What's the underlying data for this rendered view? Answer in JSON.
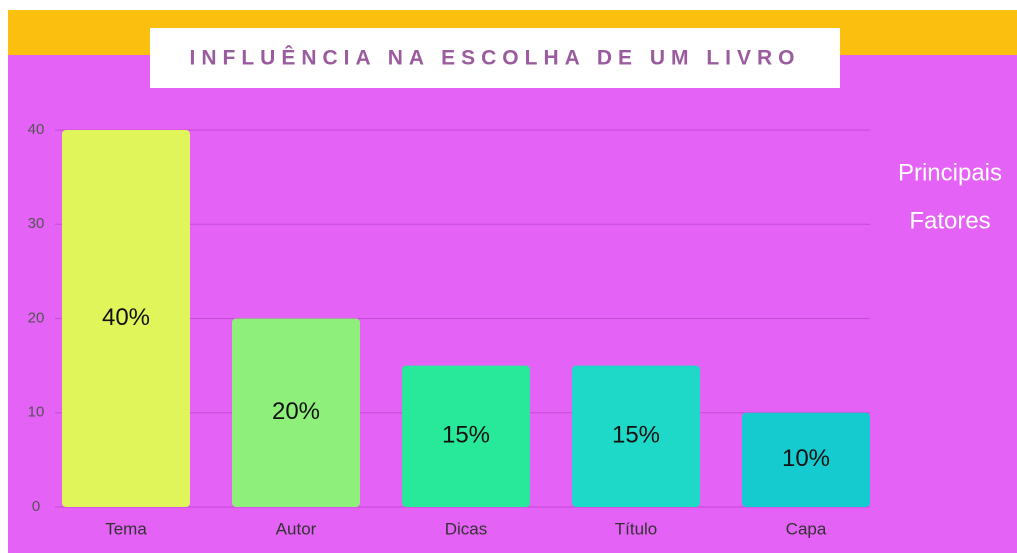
{
  "chart_data": {
    "type": "bar",
    "title": "INFLUÊNCIA NA ESCOLHA DE UM LIVRO",
    "annotation": [
      "Principais",
      "Fatores"
    ],
    "categories": [
      "Tema",
      "Autor",
      "Dicas",
      "Título",
      "Capa"
    ],
    "values": [
      40,
      20,
      15,
      15,
      10
    ],
    "value_labels": [
      "40%",
      "20%",
      "15%",
      "15%",
      "10%"
    ],
    "colors": [
      "#e0f55a",
      "#8ef07a",
      "#28e89a",
      "#1ed9c8",
      "#16cbd0"
    ],
    "ylim": [
      0,
      40
    ],
    "yticks": [
      0,
      10,
      20,
      30,
      40
    ],
    "grid": true
  }
}
